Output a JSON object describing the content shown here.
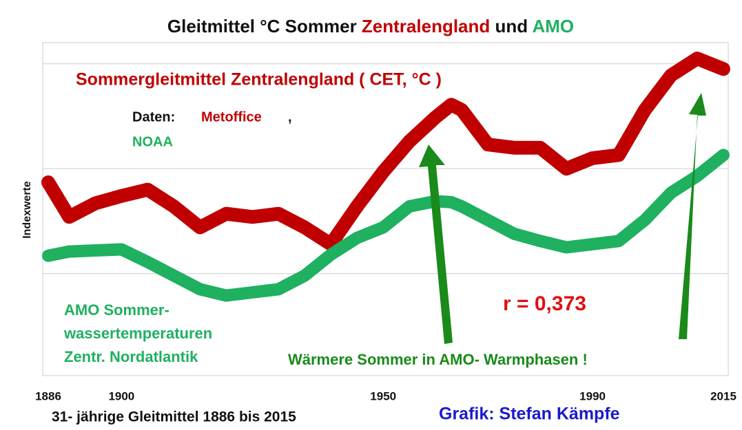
{
  "chart_data": {
    "type": "line",
    "title_parts": [
      "Gleitmittel °C Sommer",
      "Zentralengland",
      "und",
      "AMO"
    ],
    "ylabel": "Indexwerte",
    "annotations": {
      "cet_label": "Sommergleitmittel Zentralengland ( CET,  °C )",
      "source_prefix": "Daten:",
      "source_metoffice": "Metoffice",
      "source_comma": ",",
      "source_noaa": "NOAA",
      "amo_label": [
        "AMO Sommer-",
        "wassertemperaturen",
        "Zentr. Nordatlantik"
      ],
      "correlation": "r = 0,373",
      "warm_note": "Wärmere Sommer in AMO- Warmphasen !",
      "footer": "31- jährige Gleitmittel 1886 bis 2015",
      "credit": "Grafik: Stefan Kämpfe"
    },
    "x": [
      1886,
      1890,
      1895,
      1900,
      1905,
      1910,
      1915,
      1920,
      1925,
      1930,
      1935,
      1940,
      1945,
      1950,
      1955,
      1960,
      1963,
      1965,
      1970,
      1975,
      1980,
      1985,
      1990,
      1995,
      2000,
      2005,
      2010,
      2015
    ],
    "series": [
      {
        "name": "Sommergleitmittel Zentralengland",
        "color": "#c00000",
        "values": [
          1.87,
          1.54,
          1.67,
          1.74,
          1.8,
          1.64,
          1.44,
          1.57,
          1.54,
          1.57,
          1.44,
          1.28,
          1.64,
          1.97,
          2.26,
          2.49,
          2.61,
          2.56,
          2.23,
          2.2,
          2.2,
          2.0,
          2.1,
          2.13,
          2.56,
          2.89,
          3.05,
          2.95
        ]
      },
      {
        "name": "AMO",
        "color": "#1fb060",
        "values": [
          1.17,
          1.21,
          1.22,
          1.23,
          1.11,
          0.98,
          0.85,
          0.79,
          0.82,
          0.85,
          0.98,
          1.18,
          1.34,
          1.44,
          1.64,
          1.69,
          1.68,
          1.64,
          1.51,
          1.38,
          1.31,
          1.25,
          1.28,
          1.31,
          1.51,
          1.77,
          1.93,
          2.13
        ]
      }
    ],
    "xlim": [
      1886,
      2015
    ],
    "xticks": [
      1886,
      1900,
      1950,
      1990,
      2015
    ],
    "ylim": [
      0,
      3.3
    ],
    "yticks": [
      1,
      2,
      3
    ],
    "grid": true
  }
}
